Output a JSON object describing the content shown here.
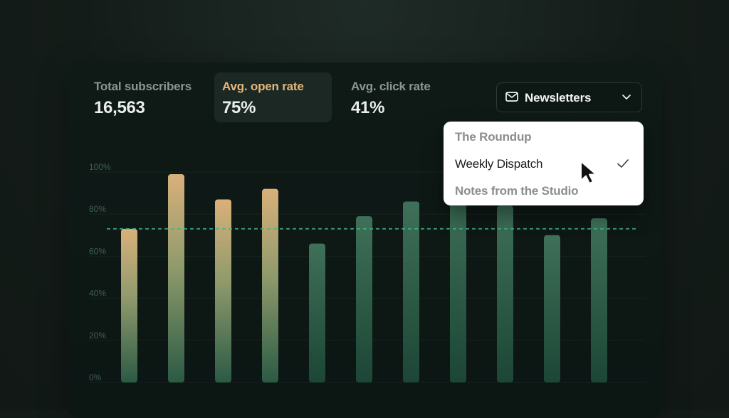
{
  "stats": [
    {
      "label": "Total subscribers",
      "value": "16,563"
    },
    {
      "label": "Avg. open rate",
      "value": "75%"
    },
    {
      "label": "Avg. click rate",
      "value": "41%"
    }
  ],
  "newsletter_dropdown": {
    "label": "Newsletters",
    "icon": "mail-icon",
    "options": [
      {
        "label": "The Roundup",
        "selected": false
      },
      {
        "label": "Weekly Dispatch",
        "selected": true
      },
      {
        "label": "Notes from the Studio",
        "selected": false
      }
    ]
  },
  "colors": {
    "accent": "#e6b57c",
    "bar_top_warm": "#d9b07a",
    "bar_top_cool": "#3d6b55",
    "bar_bottom": "#1e4a3a",
    "average_line": "#3fb58e"
  },
  "chart_data": {
    "type": "bar",
    "title": "",
    "xlabel": "",
    "ylabel": "",
    "y_ticks": [
      "0%",
      "20%",
      "40%",
      "60%",
      "80%",
      "100%"
    ],
    "ylim": [
      0,
      100
    ],
    "grid": true,
    "average_line": 73,
    "values": [
      73,
      99,
      87,
      92,
      66,
      79,
      86,
      91,
      84,
      70,
      78
    ]
  }
}
